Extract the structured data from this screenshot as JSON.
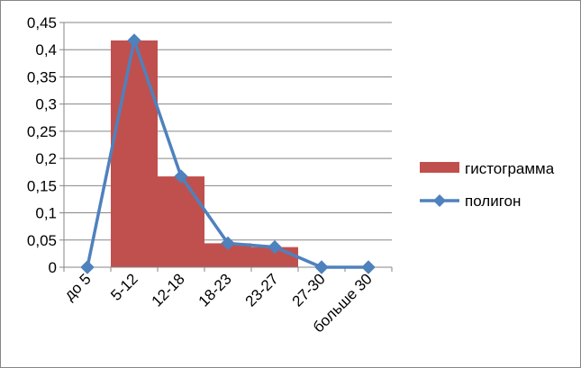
{
  "chart_data": {
    "type": "bar",
    "categories": [
      "до 5",
      "5-12",
      "12-18",
      "18-23",
      "23-27",
      "27-30",
      "больше 30"
    ],
    "series": [
      {
        "name": "гистограмма",
        "kind": "bar",
        "color": "#C0504D",
        "values": [
          0,
          0.417,
          0.167,
          0.044,
          0.037,
          0,
          0
        ]
      },
      {
        "name": "полигон",
        "kind": "line",
        "marker": "diamond",
        "color": "#4F81BD",
        "values": [
          0,
          0.417,
          0.167,
          0.044,
          0.037,
          0,
          0
        ]
      }
    ],
    "y_ticks": [
      "0",
      "0,05",
      "0,1",
      "0,15",
      "0,2",
      "0,25",
      "0,3",
      "0,35",
      "0,4",
      "0,45"
    ],
    "ylim": [
      0,
      0.45
    ],
    "grid": "horizontal",
    "legend_position": "right"
  }
}
